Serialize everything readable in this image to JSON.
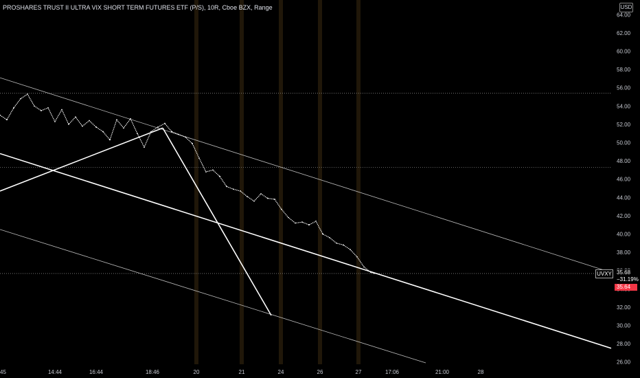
{
  "header": {
    "title": "PROSHARES TRUST II ULTRA VIX SHORT TERM FUTURES ETF (P/S), 10R, Cboe BZX, Range",
    "currency": "USD"
  },
  "price_panel": {
    "symbol": "UVXY",
    "price": "35.68",
    "change_pct": "−31.19%",
    "last_price": "35.64",
    "colors": {
      "last_price_bg": "#f23645",
      "candles": "#ffffff",
      "session_bands": "#3a2a10"
    }
  },
  "chart_data": {
    "type": "line",
    "ylim": [
      25,
      65
    ],
    "y_ticks": [
      "64.00",
      "62.00",
      "60.00",
      "58.00",
      "56.00",
      "54.00",
      "52.00",
      "50.00",
      "48.00",
      "46.00",
      "44.00",
      "42.00",
      "40.00",
      "38.00",
      "36.00",
      "34.00",
      "32.00",
      "30.00",
      "28.00",
      "26.00"
    ],
    "x_ticks": [
      "45",
      "14:44",
      "16:44",
      "18:46",
      "20",
      "21",
      "24",
      "26",
      "27",
      "17:06",
      "21:00",
      "28"
    ],
    "x_tick_index": [
      0,
      80,
      140,
      222,
      286,
      352,
      409,
      466,
      522,
      571,
      644,
      700
    ],
    "x_range": [
      0,
      890
    ],
    "series": [
      {
        "x": [
          0,
          10,
          20,
          30,
          40,
          50,
          60,
          70,
          80,
          90,
          100,
          110,
          120,
          130,
          140,
          150,
          160,
          170,
          180,
          190,
          200,
          210,
          220,
          230,
          240,
          250,
          260,
          270,
          280,
          290,
          300,
          310,
          320,
          330,
          340,
          350,
          360,
          370,
          380,
          390,
          400,
          410,
          420,
          430,
          440,
          450,
          460,
          470,
          480,
          490,
          500,
          510,
          520,
          530,
          540,
          545
        ],
        "values": [
          53.0,
          52.5,
          53.8,
          54.8,
          55.3,
          54.0,
          53.5,
          53.8,
          52.3,
          53.6,
          52.0,
          52.8,
          51.8,
          52.4,
          51.7,
          51.2,
          50.3,
          52.5,
          51.6,
          52.6,
          51.0,
          49.5,
          51.2,
          51.7,
          52.1,
          51.2,
          50.9,
          50.6,
          49.9,
          48.3,
          46.8,
          47.0,
          46.3,
          45.2,
          44.9,
          44.7,
          44.1,
          43.6,
          44.4,
          43.9,
          43.8,
          42.7,
          41.8,
          41.2,
          41.3,
          41.0,
          41.4,
          40.0,
          39.6,
          39.0,
          38.8,
          38.3,
          37.5,
          36.4,
          35.8,
          35.7
        ]
      }
    ],
    "trend_lines": [
      {
        "from": [
          0,
          57.1
        ],
        "to": [
          890,
          35.8
        ]
      },
      {
        "from": [
          0,
          48.8
        ],
        "to": [
          890,
          27.5
        ]
      },
      {
        "from": [
          0,
          40.5
        ],
        "to": [
          620,
          25.9
        ]
      },
      {
        "from": [
          0,
          44.7
        ],
        "to": [
          237,
          51.6
        ]
      },
      {
        "from": [
          237,
          51.6
        ],
        "to": [
          395,
          31.1
        ]
      }
    ],
    "horizontal_levels": [
      55.4,
      47.3,
      35.68
    ],
    "session_bands_x": [
      286,
      352,
      409,
      466,
      522
    ]
  }
}
